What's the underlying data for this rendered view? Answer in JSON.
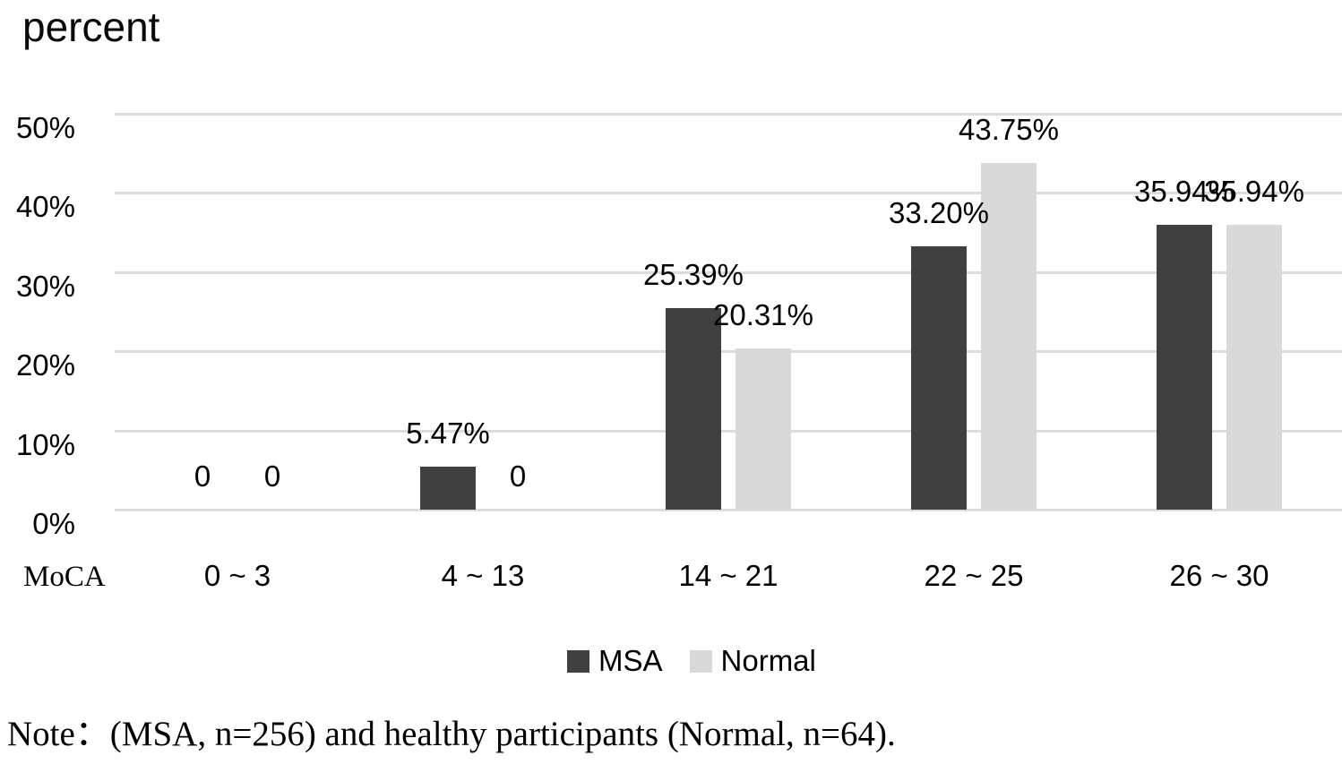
{
  "chart_data": {
    "type": "bar",
    "title": "percent",
    "x_axis_prefix": "MoCA",
    "categories": [
      "0 ~ 3",
      "4 ~ 13",
      "14 ~ 21",
      "22 ~ 25",
      "26 ~ 30"
    ],
    "series": [
      {
        "name": "MSA",
        "color": "#404040",
        "values": [
          0,
          5.47,
          25.39,
          33.2,
          35.94
        ],
        "labels": [
          "0",
          "5.47%",
          "25.39%",
          "33.20%",
          "35.94%"
        ]
      },
      {
        "name": "Normal",
        "color": "#d9d9d9",
        "values": [
          0,
          0,
          20.31,
          43.75,
          35.94
        ],
        "labels": [
          "0",
          "0",
          "20.31%",
          "43.75%",
          "35.94%"
        ]
      }
    ],
    "y_ticks": [
      {
        "label": "50%",
        "value": 50
      },
      {
        "label": "40%",
        "value": 40
      },
      {
        "label": "30%",
        "value": 30
      },
      {
        "label": "20%",
        "value": 20
      },
      {
        "label": "10%",
        "value": 10
      },
      {
        "label": "0%",
        "value": 0
      }
    ],
    "ylim": [
      0,
      50
    ],
    "grid": true,
    "legend_position": "bottom"
  },
  "note": "Note：(MSA, n=256) and healthy participants (Normal, n=64).",
  "colors": {
    "msa_bar": "#404040",
    "normal_bar": "#d9d9d9",
    "gridline": "#dcdcdc",
    "text": "#000000"
  }
}
